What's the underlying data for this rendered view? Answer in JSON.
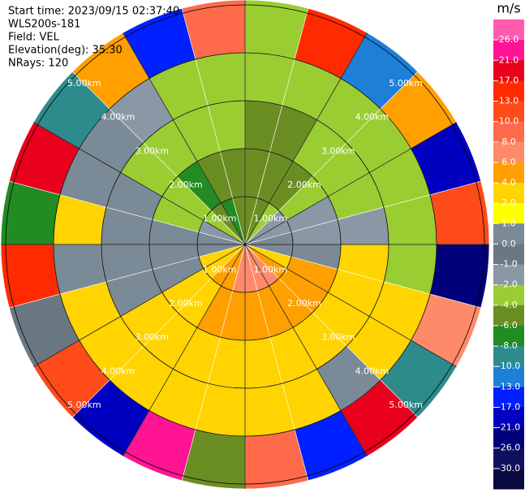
{
  "chart_data": {
    "type": "ppi",
    "info": [
      "Start time: 2023/09/15 02:37:40",
      "WLS200s-181",
      "Field: VEL",
      "Elevation(deg): 35.30",
      "NRays: 120"
    ],
    "colorbar_title": "m/s",
    "levels": [
      {
        "value": 26,
        "label": "26.0"
      },
      {
        "value": 21,
        "label": "21.0"
      },
      {
        "value": 17,
        "label": "17.0"
      },
      {
        "value": 13,
        "label": "13.0"
      },
      {
        "value": 10,
        "label": "10.0"
      },
      {
        "value": 8,
        "label": "8.0"
      },
      {
        "value": 6,
        "label": "6.0"
      },
      {
        "value": 4,
        "label": "4.0"
      },
      {
        "value": 2,
        "label": "2.0"
      },
      {
        "value": 1,
        "label": "1.0"
      },
      {
        "value": 0,
        "label": "0.0"
      },
      {
        "value": -1,
        "label": "-1.0"
      },
      {
        "value": -2,
        "label": "-2.0"
      },
      {
        "value": -4,
        "label": "-4.0"
      },
      {
        "value": -6,
        "label": "-6.0"
      },
      {
        "value": -8,
        "label": "-8.0"
      },
      {
        "value": -10,
        "label": "-10.0"
      },
      {
        "value": -13,
        "label": "-13.0"
      },
      {
        "value": -17,
        "label": "-17.0"
      },
      {
        "value": -21,
        "label": "-21.0"
      },
      {
        "value": -26,
        "label": "-26.0"
      },
      {
        "value": -30,
        "label": "-30.0"
      }
    ],
    "colors": [
      "#ff5cb0",
      "#ff1493",
      "#e8001c",
      "#ff2a00",
      "#ff4a1a",
      "#ff6a4a",
      "#ff8a6a",
      "#ff9f00",
      "#ffd400",
      "#ffff00",
      "#7a8a96",
      "#6a7884",
      "#8a98a6",
      "#9acd32",
      "#6b8e23",
      "#228b22",
      "#2e8b8b",
      "#1e7fd8",
      "#0020ff",
      "#0000c0",
      "#00007a",
      "#101060",
      "#0a0a40"
    ],
    "rings": [
      {
        "value": 1,
        "label": "1.00km"
      },
      {
        "value": 2,
        "label": "2.00km"
      },
      {
        "value": 3,
        "label": "3.00km"
      },
      {
        "value": 4,
        "label": "4.00km"
      },
      {
        "value": 5,
        "label": "5.00km"
      }
    ],
    "range_bins": [
      0,
      1,
      2,
      3,
      4,
      5.1
    ],
    "azimuth_bins": [
      0,
      15,
      30,
      45,
      60,
      75,
      90,
      105,
      120,
      135,
      150,
      165,
      180,
      195,
      210,
      225,
      240,
      255,
      270,
      285,
      300,
      315,
      330,
      345,
      360
    ],
    "values": [
      [
        -6,
        -6,
        -5,
        -4,
        -3
      ],
      [
        -6,
        -5,
        -5,
        -3,
        15
      ],
      [
        -4,
        -5,
        -4,
        -3,
        -12
      ],
      [
        -2,
        -3,
        -3,
        -3,
        4
      ],
      [
        -2,
        -2,
        -3,
        -3,
        -18
      ],
      [
        0,
        -2,
        -2,
        -3,
        12
      ],
      [
        0,
        0,
        3,
        -3,
        -25
      ],
      [
        3,
        4,
        2,
        3,
        7
      ],
      [
        5,
        5,
        3,
        2,
        -9
      ],
      [
        6,
        5,
        3,
        0,
        19
      ],
      [
        7,
        5,
        3,
        2,
        -14
      ],
      [
        7,
        5,
        3,
        3,
        9
      ],
      [
        6,
        5,
        3,
        2,
        -5
      ],
      [
        5,
        5,
        3,
        2,
        23
      ],
      [
        4,
        3,
        2,
        2,
        -20
      ],
      [
        3,
        2,
        2,
        3,
        11
      ],
      [
        2,
        0,
        0,
        2,
        -1
      ],
      [
        0,
        0,
        0,
        0,
        14
      ],
      [
        0,
        0,
        0,
        2,
        -7
      ],
      [
        -2,
        -3,
        0,
        0,
        18
      ],
      [
        -3,
        -4,
        -3,
        0,
        -10
      ],
      [
        -6,
        -7,
        -3,
        -2,
        5
      ],
      [
        -7,
        -6,
        -4,
        -3,
        -16
      ],
      [
        -6,
        -6,
        -4,
        -4,
        8
      ]
    ]
  }
}
